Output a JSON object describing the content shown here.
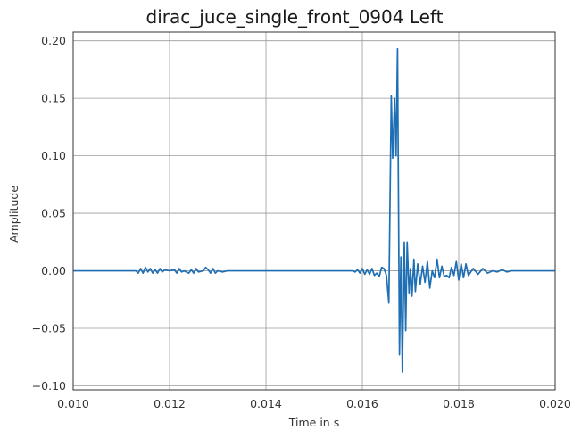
{
  "chart_data": {
    "type": "line",
    "title": "dirac_juce_single_front_0904 Left",
    "xlabel": "Time in s",
    "ylabel": "Amplitude",
    "xlim": [
      0.01,
      0.02
    ],
    "ylim": [
      -0.1035,
      0.2075
    ],
    "xticks": [
      0.01,
      0.012,
      0.014,
      0.016,
      0.018,
      0.02
    ],
    "xtick_labels": [
      "0.010",
      "0.012",
      "0.014",
      "0.016",
      "0.018",
      "0.020"
    ],
    "yticks": [
      -0.1,
      -0.05,
      0.0,
      0.05,
      0.1,
      0.15,
      0.2
    ],
    "ytick_labels": [
      "−0.10",
      "−0.05",
      "0.00",
      "0.05",
      "0.10",
      "0.15",
      "0.20"
    ],
    "grid": true,
    "line_color": "#1f6fb4",
    "series": [
      {
        "x": [
          0.01,
          0.0113,
          0.01135,
          0.0114,
          0.01145,
          0.0115,
          0.01155,
          0.0116,
          0.01165,
          0.0117,
          0.01175,
          0.0118,
          0.01185,
          0.0119,
          0.012,
          0.0121,
          0.01215,
          0.0122,
          0.01225,
          0.0123,
          0.0124,
          0.01245,
          0.0125,
          0.01255,
          0.0126,
          0.0127,
          0.01275,
          0.0128,
          0.01285,
          0.0129,
          0.01295,
          0.013,
          0.0131,
          0.0132,
          0.0158,
          0.01585,
          0.0159,
          0.01595,
          0.016,
          0.01605,
          0.0161,
          0.01615,
          0.0162,
          0.01625,
          0.0163,
          0.01635,
          0.0164,
          0.01645,
          0.0165,
          0.01655,
          0.0166,
          0.01663,
          0.01667,
          0.0167,
          0.01673,
          0.01677,
          0.0168,
          0.01683,
          0.01687,
          0.0169,
          0.01693,
          0.01697,
          0.017,
          0.01703,
          0.01707,
          0.0171,
          0.01715,
          0.0172,
          0.01725,
          0.0173,
          0.01735,
          0.0174,
          0.01745,
          0.0175,
          0.01755,
          0.0176,
          0.01765,
          0.0177,
          0.01775,
          0.0178,
          0.01785,
          0.0179,
          0.01795,
          0.018,
          0.01805,
          0.0181,
          0.01815,
          0.0182,
          0.0183,
          0.0184,
          0.0185,
          0.0186,
          0.0187,
          0.0188,
          0.0189,
          0.019,
          0.0191,
          0.0192,
          0.02
        ],
        "y": [
          0.0,
          0.0,
          -0.002,
          0.002,
          -0.002,
          0.003,
          -0.001,
          0.002,
          -0.002,
          0.001,
          -0.002,
          0.002,
          -0.001,
          0.001,
          0.0,
          0.001,
          -0.002,
          0.002,
          -0.001,
          0.0,
          -0.002,
          0.001,
          -0.002,
          0.002,
          -0.001,
          0.0,
          0.003,
          0.001,
          -0.002,
          0.002,
          -0.002,
          0.0,
          -0.001,
          0.0,
          0.0,
          -0.001,
          0.001,
          -0.002,
          0.002,
          -0.003,
          0.001,
          -0.003,
          0.002,
          -0.004,
          -0.002,
          -0.005,
          0.003,
          0.002,
          -0.004,
          -0.028,
          0.152,
          0.098,
          0.15,
          0.1,
          0.193,
          -0.073,
          0.012,
          -0.088,
          0.025,
          -0.052,
          0.025,
          -0.02,
          0.002,
          -0.022,
          0.01,
          -0.018,
          0.006,
          -0.012,
          0.004,
          -0.01,
          0.008,
          -0.015,
          0.0,
          -0.006,
          0.01,
          -0.006,
          0.004,
          -0.005,
          -0.004,
          -0.006,
          0.003,
          -0.004,
          0.008,
          -0.008,
          0.006,
          -0.006,
          0.006,
          -0.004,
          0.002,
          -0.003,
          0.002,
          -0.002,
          0.0,
          -0.001,
          0.001,
          -0.001,
          0.0,
          0.0,
          0.0
        ]
      }
    ]
  }
}
